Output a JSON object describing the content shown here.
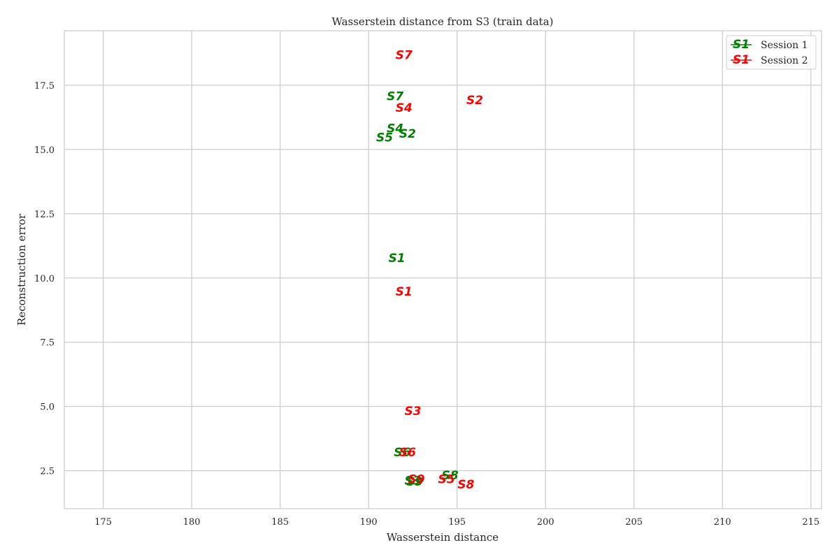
{
  "chart_data": {
    "type": "scatter",
    "title": "Wasserstein distance from S3 (train data)",
    "xlabel": "Wasserstein distance",
    "ylabel": "Reconstruction error",
    "xlim": [
      172.8,
      215.6
    ],
    "ylim": [
      1.02,
      19.62
    ],
    "xticks": [
      175,
      180,
      185,
      190,
      195,
      200,
      205,
      210,
      215
    ],
    "xtick_labels": [
      "175",
      "180",
      "185",
      "190",
      "195",
      "200",
      "205",
      "210",
      "215"
    ],
    "yticks": [
      2.5,
      5.0,
      7.5,
      10.0,
      12.5,
      15.0,
      17.5
    ],
    "ytick_labels": [
      "2.5",
      "5.0",
      "7.5",
      "10.0",
      "12.5",
      "15.0",
      "17.5"
    ],
    "grid": true,
    "legend_position": "top-right",
    "series": [
      {
        "name": "Session 1",
        "color": "#008000",
        "legend_symbol": "S1",
        "points": [
          {
            "label": "S1",
            "x": 191.6,
            "y": 10.75
          },
          {
            "label": "S2",
            "x": 192.2,
            "y": 15.6
          },
          {
            "label": "S3",
            "x": 192.5,
            "y": 2.1
          },
          {
            "label": "S4",
            "x": 191.5,
            "y": 15.8
          },
          {
            "label": "S5",
            "x": 190.9,
            "y": 15.45
          },
          {
            "label": "S6",
            "x": 191.9,
            "y": 3.2
          },
          {
            "label": "S7",
            "x": 191.5,
            "y": 17.05
          },
          {
            "label": "S8",
            "x": 194.6,
            "y": 2.3
          },
          {
            "label": "S9",
            "x": 192.6,
            "y": 2.05
          }
        ]
      },
      {
        "name": "Session 2",
        "color": "#ff0000",
        "legend_symbol": "S1",
        "points": [
          {
            "label": "S1",
            "x": 192.0,
            "y": 9.45
          },
          {
            "label": "S2",
            "x": 196.0,
            "y": 16.9
          },
          {
            "label": "S3",
            "x": 192.5,
            "y": 4.8
          },
          {
            "label": "S4",
            "x": 192.0,
            "y": 16.6
          },
          {
            "label": "S5",
            "x": 194.4,
            "y": 2.15
          },
          {
            "label": "S6",
            "x": 192.2,
            "y": 3.2
          },
          {
            "label": "S7",
            "x": 192.0,
            "y": 18.65
          },
          {
            "label": "S8",
            "x": 195.5,
            "y": 1.95
          },
          {
            "label": "S9",
            "x": 192.7,
            "y": 2.15
          }
        ]
      }
    ]
  }
}
